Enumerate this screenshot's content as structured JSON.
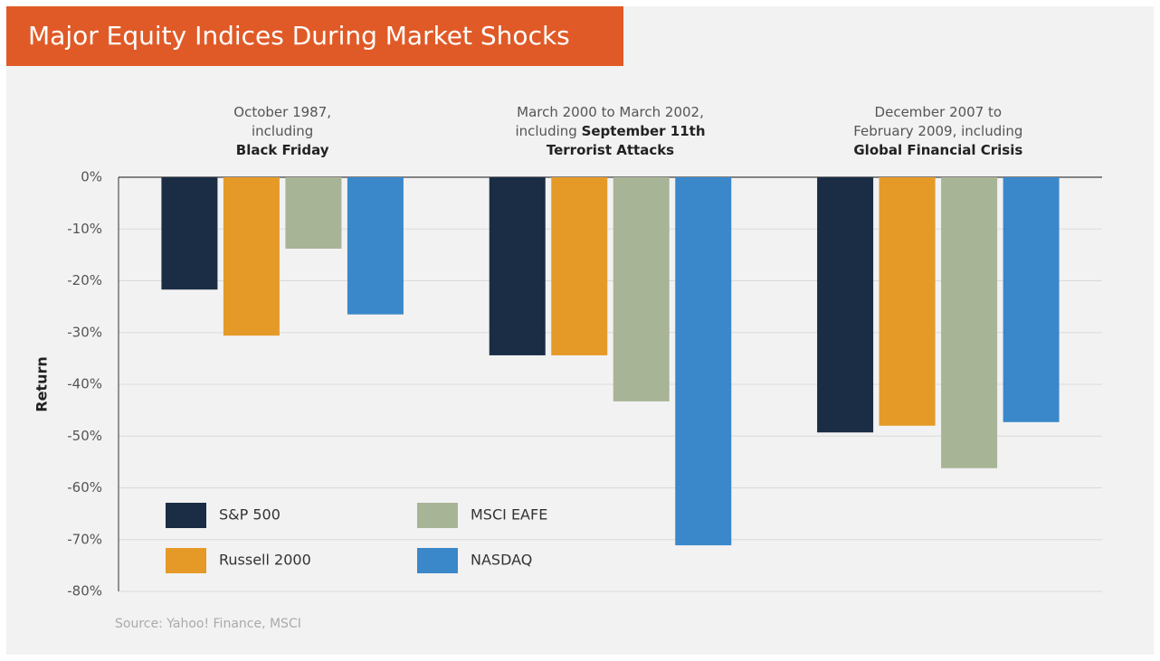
{
  "chart_data": {
    "type": "bar",
    "title": "Major Equity Indices During Market Shocks",
    "y_label": "Return",
    "source": "Source: Yahoo! Finance, MSCI",
    "categories": [
      [
        [
          {
            "text": "October 1987,",
            "bold": false
          }
        ],
        [
          {
            "text": "including",
            "bold": false
          }
        ],
        [
          {
            "text": "Black Friday",
            "bold": true
          }
        ]
      ],
      [
        [
          {
            "text": "March 2000 to March 2002,",
            "bold": false
          }
        ],
        [
          {
            "text": "including ",
            "bold": false
          },
          {
            "text": "September 11th",
            "bold": true
          }
        ],
        [
          {
            "text": "Terrorist Attacks",
            "bold": true
          }
        ]
      ],
      [
        [
          {
            "text": "December 2007 to",
            "bold": false
          }
        ],
        [
          {
            "text": "February 2009, including",
            "bold": false
          }
        ],
        [
          {
            "text": "Global Financial Crisis",
            "bold": true
          }
        ]
      ]
    ],
    "series": [
      {
        "name": "S&P 500",
        "color": "#1b2d45",
        "values": [
          -21.7,
          -34.4,
          -49.3
        ]
      },
      {
        "name": "Russell 2000",
        "color": "#e59a28",
        "values": [
          -30.6,
          -34.4,
          -48.0
        ]
      },
      {
        "name": "MSCI EAFE",
        "color": "#a8b496",
        "values": [
          -13.8,
          -43.3,
          -56.2
        ]
      },
      {
        "name": "NASDAQ",
        "color": "#3a88c9",
        "values": [
          -26.5,
          -71.1,
          -47.3
        ]
      }
    ],
    "ylim": [
      -80,
      0
    ],
    "yticks": [
      {
        "value": 0,
        "label": "0%"
      },
      {
        "value": -10,
        "label": "-10%"
      },
      {
        "value": -20,
        "label": "-20%"
      },
      {
        "value": -30,
        "label": "-30%"
      },
      {
        "value": -40,
        "label": "-40%"
      },
      {
        "value": -50,
        "label": "-50%"
      },
      {
        "value": -60,
        "label": "-60%"
      },
      {
        "value": -70,
        "label": "-70%"
      },
      {
        "value": -80,
        "label": "-80%"
      }
    ],
    "grid": true
  }
}
